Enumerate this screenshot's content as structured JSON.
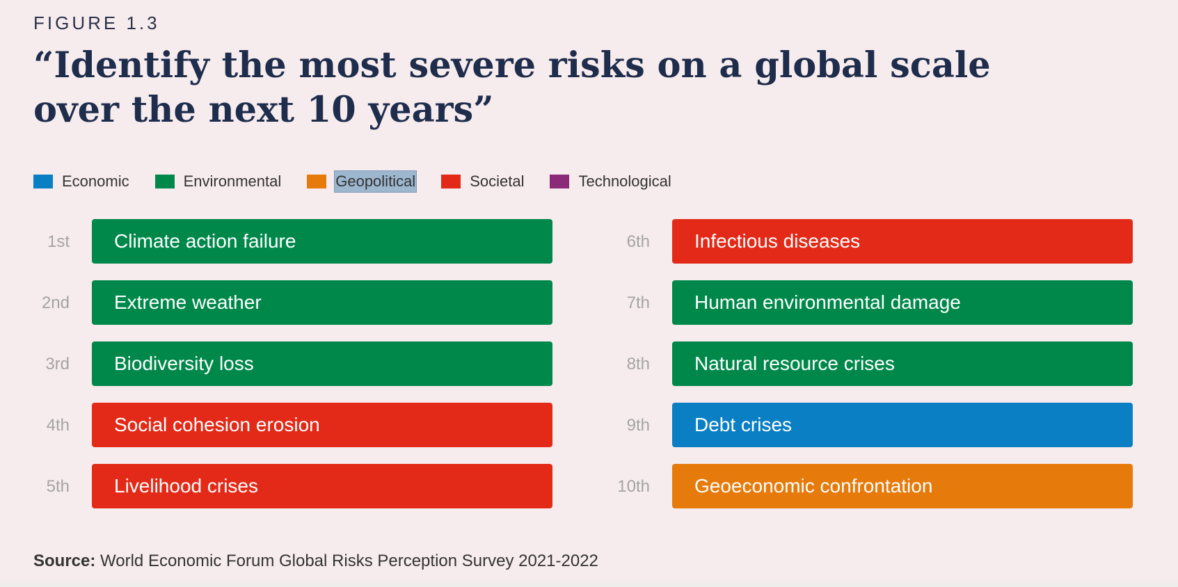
{
  "figure_label": "FIGURE 1.3",
  "title": "“Identify the most severe risks on a global scale over the next 10 years”",
  "legend": [
    {
      "label": "Economic",
      "color": "#0a7fc4",
      "selected": false
    },
    {
      "label": "Environmental",
      "color": "#00884b",
      "selected": false
    },
    {
      "label": "Geopolitical",
      "color": "#e67a0a",
      "selected": true
    },
    {
      "label": "Societal",
      "color": "#e32a18",
      "selected": false
    },
    {
      "label": "Technological",
      "color": "#8c2a7a",
      "selected": false
    }
  ],
  "chart_data": {
    "type": "table",
    "title": "“Identify the most severe risks on a global scale over the next 10 years”",
    "categories": [
      "Economic",
      "Environmental",
      "Geopolitical",
      "Societal",
      "Technological"
    ],
    "rows": [
      {
        "rank": "1st",
        "risk": "Climate action failure",
        "category": "Environmental"
      },
      {
        "rank": "2nd",
        "risk": "Extreme weather",
        "category": "Environmental"
      },
      {
        "rank": "3rd",
        "risk": "Biodiversity loss",
        "category": "Environmental"
      },
      {
        "rank": "4th",
        "risk": "Social cohesion erosion",
        "category": "Societal"
      },
      {
        "rank": "5th",
        "risk": "Livelihood crises",
        "category": "Societal"
      },
      {
        "rank": "6th",
        "risk": "Infectious diseases",
        "category": "Societal"
      },
      {
        "rank": "7th",
        "risk": "Human environmental damage",
        "category": "Environmental"
      },
      {
        "rank": "8th",
        "risk": "Natural resource crises",
        "category": "Environmental"
      },
      {
        "rank": "9th",
        "risk": "Debt crises",
        "category": "Economic"
      },
      {
        "rank": "10th",
        "risk": "Geoeconomic confrontation",
        "category": "Geopolitical"
      }
    ]
  },
  "source": {
    "label": "Source:",
    "text": "World Economic Forum Global Risks Perception Survey 2021-2022"
  }
}
